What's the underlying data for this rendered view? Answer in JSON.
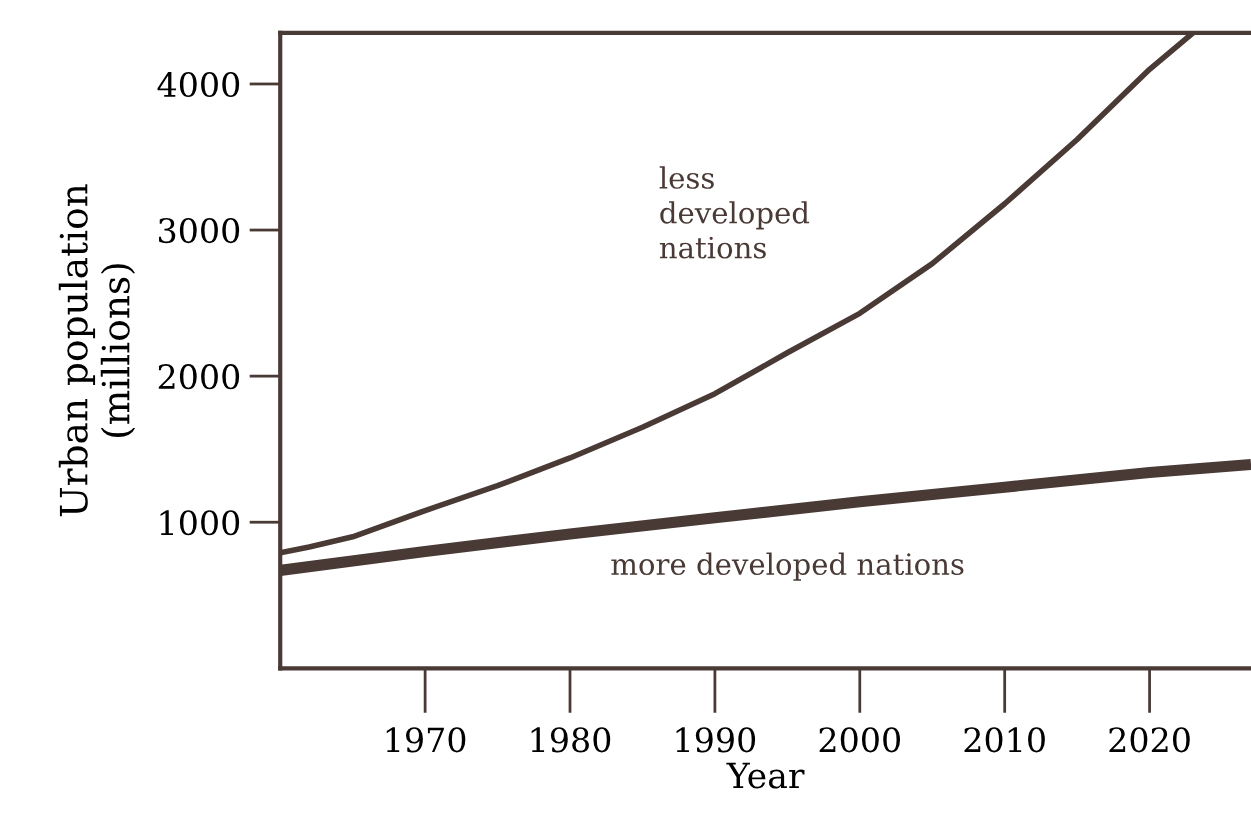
{
  "chart_data": {
    "type": "line",
    "xlabel": "Year",
    "ylabel": "Urban population\n(millions)",
    "xlim": [
      1960,
      2027
    ],
    "xticks": [
      1970,
      1980,
      1990,
      2000,
      2010,
      2020
    ],
    "ylim": [
      0,
      4350
    ],
    "yticks": [
      1000,
      2000,
      3000,
      4000
    ],
    "grid": false,
    "legend": false,
    "marker": "none",
    "line_style": "solid",
    "series": [
      {
        "name": "less\ndeveloped\nnations",
        "color": "#4a3a36",
        "x": [
          1960,
          1962,
          1965,
          1970,
          1975,
          1980,
          1985,
          1990,
          1995,
          2000,
          2005,
          2010,
          2015,
          2020,
          2023
        ],
        "values": [
          790,
          830,
          900,
          1080,
          1250,
          1440,
          1650,
          1880,
          2160,
          2430,
          2770,
          3180,
          3620,
          4100,
          4350
        ]
      },
      {
        "name": "more developed nations",
        "color": "#4a3a36",
        "x": [
          1960,
          1970,
          1980,
          1990,
          2000,
          2010,
          2020,
          2027
        ],
        "values": [
          670,
          800,
          920,
          1030,
          1140,
          1240,
          1340,
          1395
        ]
      }
    ]
  }
}
